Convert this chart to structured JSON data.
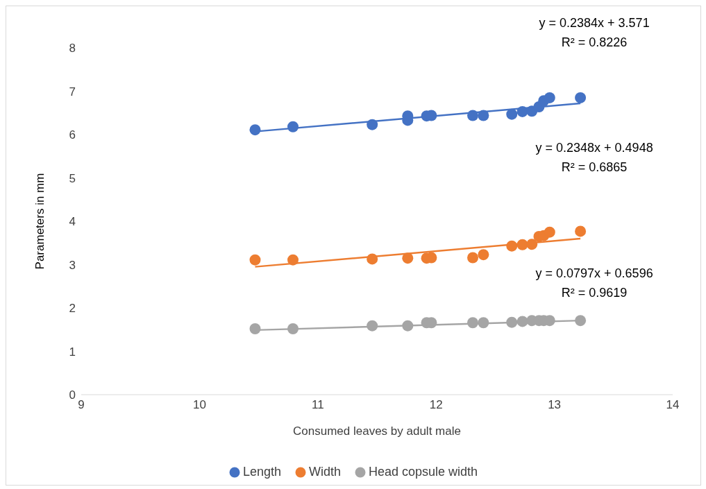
{
  "chart_data": {
    "type": "scatter",
    "xlabel": "Consumed leaves by adult male",
    "ylabel": "Parameters in mm",
    "xlim": [
      9,
      14
    ],
    "xticks": [
      9,
      10,
      11,
      12,
      13,
      14
    ],
    "ylim": [
      0,
      8
    ],
    "yticks": [
      0,
      1,
      2,
      3,
      4,
      5,
      6,
      7,
      8
    ],
    "grid": false,
    "legend": "bottom",
    "marker": "circle",
    "series": [
      {
        "name": "Length",
        "color": "#4472c4",
        "x": [
          10.47,
          10.79,
          11.46,
          11.76,
          11.76,
          11.92,
          11.96,
          12.31,
          12.4,
          12.64,
          12.73,
          12.81,
          12.87,
          12.91,
          12.96,
          13.22
        ],
        "values": [
          6.11,
          6.18,
          6.23,
          6.33,
          6.43,
          6.43,
          6.44,
          6.44,
          6.44,
          6.47,
          6.53,
          6.54,
          6.64,
          6.78,
          6.85,
          6.85
        ]
      },
      {
        "name": "Width",
        "color": "#ed7d31",
        "x": [
          10.47,
          10.79,
          11.46,
          11.76,
          11.92,
          11.96,
          12.31,
          12.4,
          12.64,
          12.73,
          12.81,
          12.87,
          12.91,
          12.96,
          13.22
        ],
        "values": [
          3.11,
          3.11,
          3.13,
          3.15,
          3.15,
          3.16,
          3.16,
          3.23,
          3.43,
          3.46,
          3.47,
          3.65,
          3.67,
          3.75,
          3.77
        ]
      },
      {
        "name": "Head copsule width",
        "color": "#a5a5a5",
        "x": [
          10.47,
          10.79,
          11.46,
          11.76,
          11.92,
          11.96,
          12.31,
          12.4,
          12.64,
          12.73,
          12.81,
          12.87,
          12.91,
          12.96,
          13.22
        ],
        "values": [
          1.52,
          1.52,
          1.59,
          1.59,
          1.66,
          1.66,
          1.66,
          1.66,
          1.67,
          1.69,
          1.71,
          1.71,
          1.71,
          1.71,
          1.71
        ]
      },
      {
        "type": "line",
        "marker": "none",
        "color": "#4472c4",
        "x": [
          10.47,
          13.22
        ],
        "values": [
          6.07,
          6.72
        ]
      },
      {
        "type": "line",
        "marker": "none",
        "color": "#ed7d31",
        "x": [
          10.47,
          13.22
        ],
        "values": [
          2.95,
          3.6
        ]
      },
      {
        "type": "line",
        "marker": "none",
        "color": "#a5a5a5",
        "x": [
          10.47,
          13.22
        ],
        "values": [
          1.49,
          1.71
        ]
      }
    ],
    "annotations": [
      "y = 0.2384x + 3.571",
      "R² = 0.8226",
      "y = 0.2348x + 0.4948",
      "R² = 0.6865",
      "y = 0.0797x + 0.6596",
      "R² = 0.9619"
    ]
  }
}
